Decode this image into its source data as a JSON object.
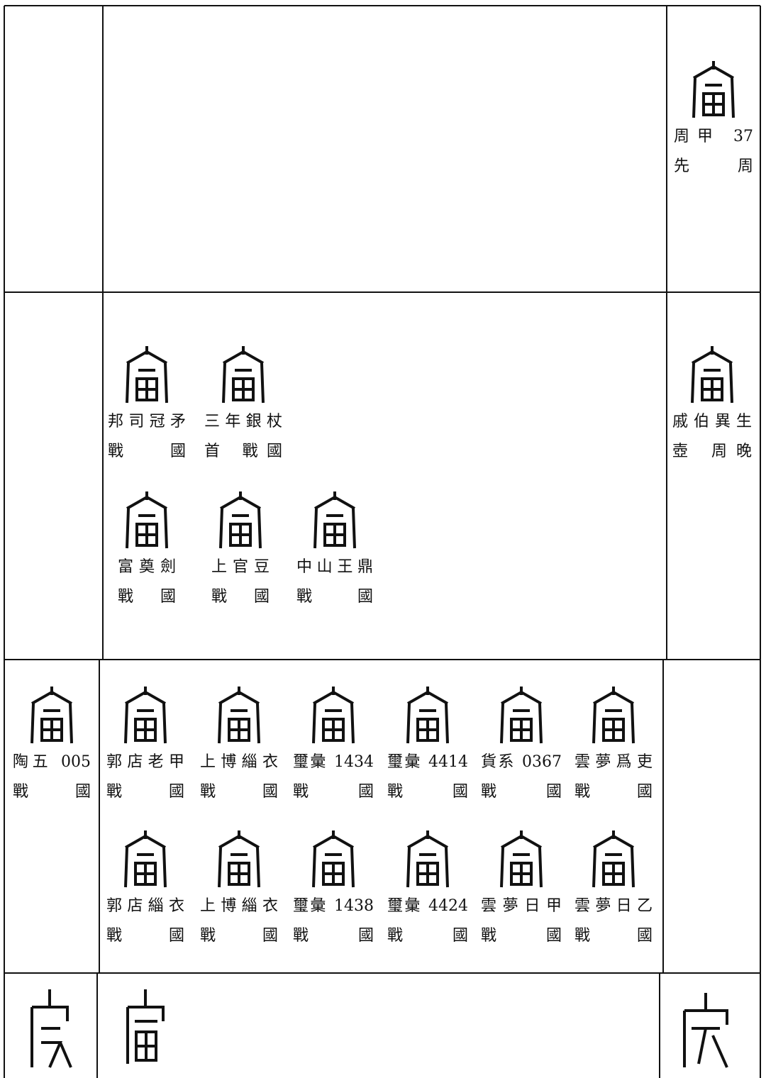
{
  "rows": [
    {
      "right": [
        {
          "lines": [
            "周甲 37",
            "先周"
          ]
        }
      ]
    },
    {
      "middle": [
        {
          "lines": [
            "邦司冠矛",
            "戰國"
          ]
        },
        {
          "lines": [
            "三年銀杖",
            "首 戰國"
          ]
        },
        {
          "lines": [
            "富奠劍",
            "戰國"
          ]
        },
        {
          "lines": [
            "上官豆",
            "戰國"
          ]
        },
        {
          "lines": [
            "中山王鼎",
            "戰國"
          ]
        }
      ],
      "right": [
        {
          "lines": [
            "戚伯異生",
            "壺 周晚"
          ]
        }
      ]
    },
    {
      "left": [
        {
          "lines": [
            "陶五 005",
            "戰國"
          ]
        }
      ],
      "middle": [
        {
          "lines": [
            "郭店老甲",
            "戰國"
          ]
        },
        {
          "lines": [
            "上博緇衣",
            "戰國"
          ]
        },
        {
          "lines": [
            "璽彙 1434",
            "戰國"
          ]
        },
        {
          "lines": [
            "璽彙 4414",
            "戰國"
          ]
        },
        {
          "lines": [
            "貨系 0367",
            "戰國"
          ]
        },
        {
          "lines": [
            "雲夢爲吏",
            "戰國"
          ]
        },
        {
          "lines": [
            "郭店緇衣",
            "戰國"
          ]
        },
        {
          "lines": [
            "上博緇衣",
            "戰國"
          ]
        },
        {
          "lines": [
            "璽彙 1438",
            "戰國"
          ]
        },
        {
          "lines": [
            "璽彙 4424",
            "戰國"
          ]
        },
        {
          "lines": [
            "雲夢日甲",
            "戰國"
          ]
        },
        {
          "lines": [
            "雲夢日乙",
            "戰國"
          ]
        }
      ]
    }
  ]
}
